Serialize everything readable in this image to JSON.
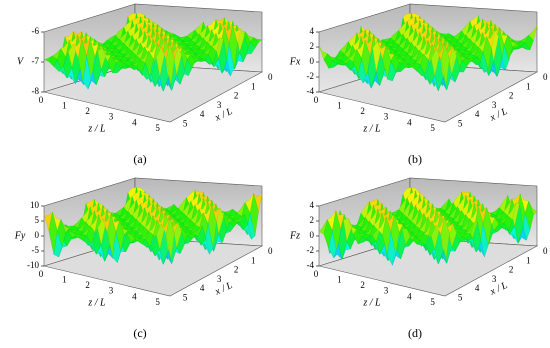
{
  "panels": [
    {
      "caption": "(a)",
      "z_label": "V",
      "z_ticks": [
        -6,
        -7,
        -8
      ],
      "front_label": "z / L",
      "front_ticks": [
        0,
        1,
        2,
        3,
        4,
        5
      ],
      "side_label": "x / L",
      "side_ticks": [
        0,
        1,
        2,
        3,
        4,
        5
      ]
    },
    {
      "caption": "(b)",
      "z_label": "Fx",
      "z_ticks": [
        4,
        2,
        0,
        -2,
        -4
      ],
      "front_label": "z / L",
      "front_ticks": [
        0,
        1,
        2,
        3,
        4,
        5
      ],
      "side_label": "x / L",
      "side_ticks": [
        0,
        1,
        2,
        3,
        4,
        5
      ]
    },
    {
      "caption": "(c)",
      "z_label": "Fy",
      "z_ticks": [
        10,
        5,
        0,
        -5,
        -10
      ],
      "front_label": "z / L",
      "front_ticks": [
        0,
        1,
        2,
        3,
        4,
        5
      ],
      "side_label": "x / L",
      "side_ticks": [
        0,
        1,
        2,
        3,
        4,
        5
      ]
    },
    {
      "caption": "(d)",
      "z_label": "Fz",
      "z_ticks": [
        4,
        2,
        0,
        -2,
        -4
      ],
      "front_label": "z / L",
      "front_ticks": [
        0,
        1,
        2,
        3,
        4,
        5
      ],
      "side_label": "x / L",
      "side_ticks": [
        0,
        1,
        2,
        3,
        4,
        5
      ]
    }
  ]
}
